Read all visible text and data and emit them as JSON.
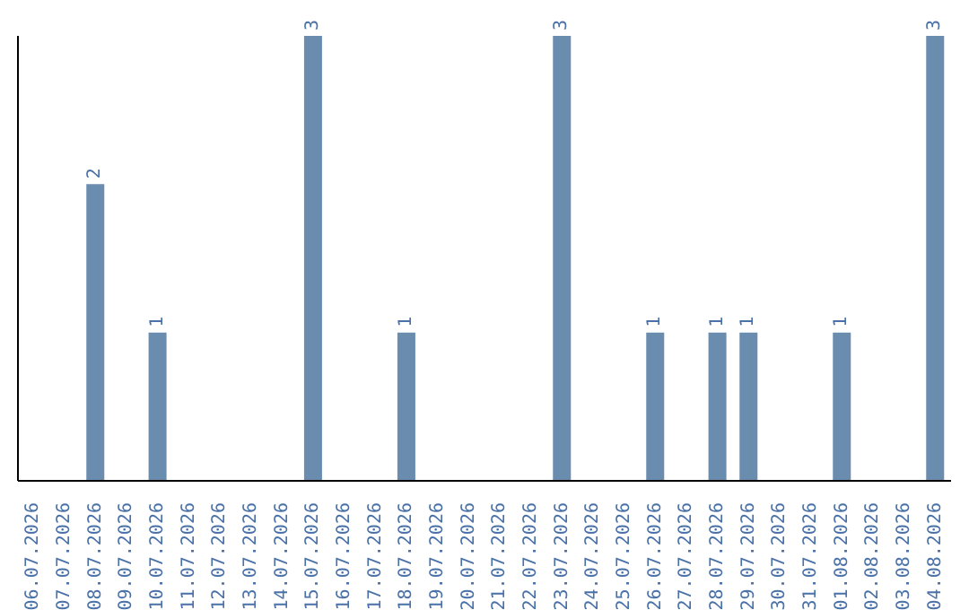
{
  "chart_data": {
    "type": "bar",
    "categories": [
      "06.07.2026",
      "07.07.2026",
      "08.07.2026",
      "09.07.2026",
      "10.07.2026",
      "11.07.2026",
      "12.07.2026",
      "13.07.2026",
      "14.07.2026",
      "15.07.2026",
      "16.07.2026",
      "17.07.2026",
      "18.07.2026",
      "19.07.2026",
      "20.07.2026",
      "21.07.2026",
      "22.07.2026",
      "23.07.2026",
      "24.07.2026",
      "25.07.2026",
      "26.07.2026",
      "27.07.2026",
      "28.07.2026",
      "29.07.2026",
      "30.07.2026",
      "31.07.2026",
      "01.08.2026",
      "02.08.2026",
      "03.08.2026",
      "04.08.2026"
    ],
    "values": [
      null,
      null,
      2,
      null,
      1,
      null,
      null,
      null,
      null,
      3,
      null,
      null,
      1,
      null,
      null,
      null,
      null,
      3,
      null,
      null,
      1,
      null,
      1,
      1,
      null,
      null,
      1,
      null,
      null,
      3
    ],
    "color": "#6a8caf",
    "ylim": [
      0,
      3
    ],
    "tick_labels": "x",
    "data_labels": true
  }
}
